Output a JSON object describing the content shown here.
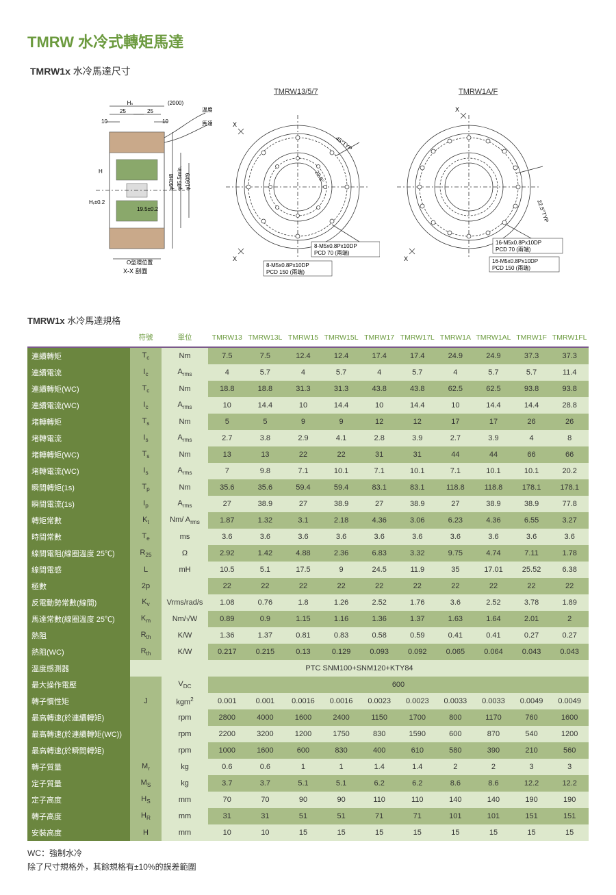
{
  "titles": {
    "main1": "TMRW",
    "main2": "水冷式轉矩馬達",
    "sub_bold": "TMRW1x",
    "sub_light": "水冷馬達尺寸"
  },
  "diagram": {
    "label1": "TMRW13/5/7",
    "label2": "TMRW1A/F",
    "dim_hs": "Hₛ",
    "dim2000": "(2000)",
    "dim25a": "25",
    "dim25b": "25",
    "dim10a": "10",
    "dim10b": "10",
    "line1": "温度開關線",
    "line2": "馬達電源線",
    "dimH": "H",
    "dimHr": "Hᵣ±0.2",
    "dim195": "19.5±0.2",
    "dim60": "φ60H8",
    "dim85": "φ85.5min.",
    "dim160": "φ160f9",
    "oring": "O型環位置",
    "section": "X-X 剖面",
    "x": "X",
    "typ45": "45°TYP",
    "deg225": "22.5°",
    "callout1a": "8-M5x0.8Px10DP",
    "callout1b": "PCD 70 (兩端)",
    "callout2a": "8-M5x0.8Px10DP",
    "callout2b": "PCD 150 (兩端)",
    "typ225": "22.5°TYP",
    "callout3a": "16-M5x0.8Px10DP",
    "callout3b": "PCD 70 (兩端)",
    "callout4a": "16-M5x0.8Px10DP",
    "callout4b": "PCD 150 (兩端)"
  },
  "spec_title_bold": "TMRW1x",
  "spec_title_light": "水冷馬達規格",
  "headers": {
    "sym": "符號",
    "unit": "單位",
    "c0": "TMRW13",
    "c1": "TMRW13L",
    "c2": "TMRW15",
    "c3": "TMRW15L",
    "c4": "TMRW17",
    "c5": "TMRW17L",
    "c6": "TMRW1A",
    "c7": "TMRW1AL",
    "c8": "TMRW1F",
    "c9": "TMRW1FL"
  },
  "rows": [
    {
      "label": "連續轉矩",
      "sym": "Tc",
      "sub": "c",
      "unit": "Nm",
      "v": [
        "7.5",
        "7.5",
        "12.4",
        "12.4",
        "17.4",
        "17.4",
        "24.9",
        "24.9",
        "37.3",
        "37.3"
      ]
    },
    {
      "label": "連續電流",
      "sym": "Ic",
      "sub": "c",
      "unit": "Arms",
      "usub": "rms",
      "v": [
        "4",
        "5.7",
        "4",
        "5.7",
        "4",
        "5.7",
        "4",
        "5.7",
        "5.7",
        "11.4"
      ]
    },
    {
      "label": "連續轉矩(WC)",
      "sym": "Tc",
      "sub": "c",
      "unit": "Nm",
      "v": [
        "18.8",
        "18.8",
        "31.3",
        "31.3",
        "43.8",
        "43.8",
        "62.5",
        "62.5",
        "93.8",
        "93.8"
      ]
    },
    {
      "label": "連續電流(WC)",
      "sym": "Ic",
      "sub": "c",
      "unit": "Arms",
      "usub": "rms",
      "v": [
        "10",
        "14.4",
        "10",
        "14.4",
        "10",
        "14.4",
        "10",
        "14.4",
        "14.4",
        "28.8"
      ]
    },
    {
      "label": "堵轉轉矩",
      "sym": "Ts",
      "sub": "s",
      "unit": "Nm",
      "v": [
        "5",
        "5",
        "9",
        "9",
        "12",
        "12",
        "17",
        "17",
        "26",
        "26"
      ]
    },
    {
      "label": "堵轉電流",
      "sym": "Is",
      "sub": "s",
      "unit": "Arms",
      "usub": "rms",
      "v": [
        "2.7",
        "3.8",
        "2.9",
        "4.1",
        "2.8",
        "3.9",
        "2.7",
        "3.9",
        "4",
        "8"
      ]
    },
    {
      "label": "堵轉轉矩(WC)",
      "sym": "Ts",
      "sub": "s",
      "unit": "Nm",
      "v": [
        "13",
        "13",
        "22",
        "22",
        "31",
        "31",
        "44",
        "44",
        "66",
        "66"
      ]
    },
    {
      "label": "堵轉電流(WC)",
      "sym": "Is",
      "sub": "s",
      "unit": "Arms",
      "usub": "rms",
      "v": [
        "7",
        "9.8",
        "7.1",
        "10.1",
        "7.1",
        "10.1",
        "7.1",
        "10.1",
        "10.1",
        "20.2"
      ]
    },
    {
      "label": "瞬間轉矩(1s)",
      "sym": "Tp",
      "sub": "p",
      "unit": "Nm",
      "v": [
        "35.6",
        "35.6",
        "59.4",
        "59.4",
        "83.1",
        "83.1",
        "118.8",
        "118.8",
        "178.1",
        "178.1"
      ]
    },
    {
      "label": "瞬間電流(1s)",
      "sym": "Ip",
      "sub": "p",
      "unit": "Arms",
      "usub": "rms",
      "v": [
        "27",
        "38.9",
        "27",
        "38.9",
        "27",
        "38.9",
        "27",
        "38.9",
        "38.9",
        "77.8"
      ]
    },
    {
      "label": "轉矩常數",
      "sym": "Kt",
      "sub": "t",
      "unit": "Nm/ Arms",
      "usub": "rms",
      "v": [
        "1.87",
        "1.32",
        "3.1",
        "2.18",
        "4.36",
        "3.06",
        "6.23",
        "4.36",
        "6.55",
        "3.27"
      ]
    },
    {
      "label": "時間常數",
      "sym": "Te",
      "sub": "e",
      "unit": "ms",
      "v": [
        "3.6",
        "3.6",
        "3.6",
        "3.6",
        "3.6",
        "3.6",
        "3.6",
        "3.6",
        "3.6",
        "3.6"
      ]
    },
    {
      "label": "線間電阻(線圈溫度 25℃)",
      "sym": "R25",
      "sub": "25",
      "unit": "Ω",
      "v": [
        "2.92",
        "1.42",
        "4.88",
        "2.36",
        "6.83",
        "3.32",
        "9.75",
        "4.74",
        "7.11",
        "1.78"
      ]
    },
    {
      "label": "線間電感",
      "sym": "L",
      "unit": "mH",
      "v": [
        "10.5",
        "5.1",
        "17.5",
        "9",
        "24.5",
        "11.9",
        "35",
        "17.01",
        "25.52",
        "6.38"
      ]
    },
    {
      "label": "極數",
      "sym": "2p",
      "unit": "",
      "v": [
        "22",
        "22",
        "22",
        "22",
        "22",
        "22",
        "22",
        "22",
        "22",
        "22"
      ]
    },
    {
      "label": "反電動勢常數(線間)",
      "sym": "Kv",
      "sub": "v",
      "unit": "Vrms/rad/s",
      "v": [
        "1.08",
        "0.76",
        "1.8",
        "1.26",
        "2.52",
        "1.76",
        "3.6",
        "2.52",
        "3.78",
        "1.89"
      ]
    },
    {
      "label": "馬達常數(線圈溫度 25℃)",
      "sym": "Km",
      "sub": "m",
      "unit": "Nm/√W",
      "v": [
        "0.89",
        "0.9",
        "1.15",
        "1.16",
        "1.36",
        "1.37",
        "1.63",
        "1.64",
        "2.01",
        "2"
      ]
    },
    {
      "label": "熱阻",
      "sym": "Rth",
      "sub": "th",
      "unit": "K/W",
      "v": [
        "1.36",
        "1.37",
        "0.81",
        "0.83",
        "0.58",
        "0.59",
        "0.41",
        "0.41",
        "0.27",
        "0.27"
      ]
    },
    {
      "label": "熱阻(WC)",
      "sym": "Rth",
      "sub": "th",
      "unit": "K/W",
      "v": [
        "0.217",
        "0.215",
        "0.13",
        "0.129",
        "0.093",
        "0.092",
        "0.065",
        "0.064",
        "0.043",
        "0.043"
      ]
    }
  ],
  "sensor_row": {
    "label": "溫度感測器",
    "span": "PTC SNM100+SNM120+KTY84"
  },
  "vdc_row": {
    "label": "最大操作電壓",
    "unit": "VDC",
    "usub": "DC",
    "span": "600"
  },
  "rows2": [
    {
      "label": "轉子慣性矩",
      "sym": "J",
      "unit": "kgm2",
      "usup": "2",
      "v": [
        "0.001",
        "0.001",
        "0.0016",
        "0.0016",
        "0.0023",
        "0.0023",
        "0.0033",
        "0.0033",
        "0.0049",
        "0.0049"
      ]
    },
    {
      "label": "最高轉速(於連續轉矩)",
      "sym": "",
      "unit": "rpm",
      "v": [
        "2800",
        "4000",
        "1600",
        "2400",
        "1150",
        "1700",
        "800",
        "1170",
        "760",
        "1600"
      ]
    },
    {
      "label": "最高轉速(於連續轉矩(WC))",
      "sym": "",
      "unit": "rpm",
      "v": [
        "2200",
        "3200",
        "1200",
        "1750",
        "830",
        "1590",
        "600",
        "870",
        "540",
        "1200"
      ]
    },
    {
      "label": "最高轉速(於瞬間轉矩)",
      "sym": "",
      "unit": "rpm",
      "v": [
        "1000",
        "1600",
        "600",
        "830",
        "400",
        "610",
        "580",
        "390",
        "210",
        "560"
      ]
    },
    {
      "label": "轉子質量",
      "sym": "Mr",
      "sub": "r",
      "unit": "kg",
      "v": [
        "0.6",
        "0.6",
        "1",
        "1",
        "1.4",
        "1.4",
        "2",
        "2",
        "3",
        "3"
      ]
    },
    {
      "label": "定子質量",
      "sym": "MS",
      "sub": "S",
      "unit": "kg",
      "v": [
        "3.7",
        "3.7",
        "5.1",
        "5.1",
        "6.2",
        "6.2",
        "8.6",
        "8.6",
        "12.2",
        "12.2"
      ]
    },
    {
      "label": "定子高度",
      "sym": "HS",
      "sub": "S",
      "unit": "mm",
      "v": [
        "70",
        "70",
        "90",
        "90",
        "110",
        "110",
        "140",
        "140",
        "190",
        "190"
      ]
    },
    {
      "label": "轉子高度",
      "sym": "HR",
      "sub": "R",
      "unit": "mm",
      "v": [
        "31",
        "31",
        "51",
        "51",
        "71",
        "71",
        "101",
        "101",
        "151",
        "151"
      ]
    },
    {
      "label": "安裝高度",
      "sym": "H",
      "unit": "mm",
      "v": [
        "10",
        "10",
        "15",
        "15",
        "15",
        "15",
        "15",
        "15",
        "15",
        "15"
      ]
    }
  ],
  "footer": {
    "l1": "WC：強制水冷",
    "l2": "除了尺寸規格外，其餘規格有±10%的誤差範圍"
  }
}
